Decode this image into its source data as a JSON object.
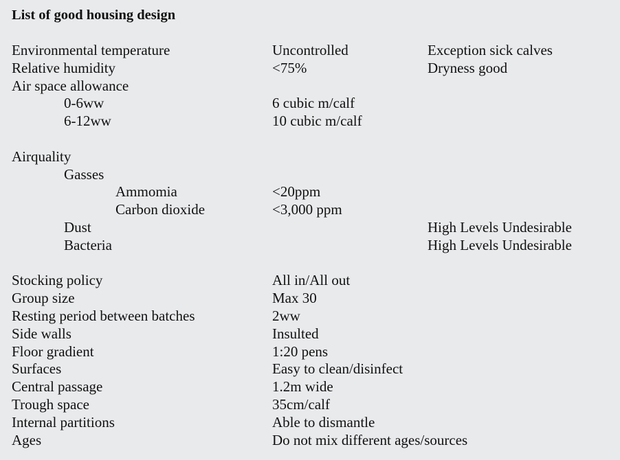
{
  "title": "List of good housing design",
  "rows": [
    {
      "label": "Environmental temperature",
      "indent": 0,
      "value": "Uncontrolled",
      "note": "Exception sick calves"
    },
    {
      "label": "Relative humidity",
      "indent": 0,
      "value": "<75%",
      "note": "Dryness good"
    },
    {
      "label": "Air space allowance",
      "indent": 0,
      "value": "",
      "note": ""
    },
    {
      "label": "0-6ww",
      "indent": 1,
      "value": "6 cubic m/calf",
      "note": ""
    },
    {
      "label": "6-12ww",
      "indent": 1,
      "value": "10 cubic m/calf",
      "note": ""
    },
    {
      "label": "",
      "indent": 0,
      "value": "",
      "note": ""
    },
    {
      "label": "Airquality",
      "indent": 0,
      "value": "",
      "note": ""
    },
    {
      "label": "Gasses",
      "indent": 1,
      "value": "",
      "note": ""
    },
    {
      "label": "Ammomia",
      "indent": 2,
      "value": "<20ppm",
      "note": ""
    },
    {
      "label": "Carbon dioxide",
      "indent": 2,
      "value": "<3,000 ppm",
      "note": ""
    },
    {
      "label": "Dust",
      "indent": 1,
      "value": "",
      "note": "High Levels Undesirable"
    },
    {
      "label": "Bacteria",
      "indent": 1,
      "value": "",
      "note": "High Levels Undesirable"
    },
    {
      "label": "",
      "indent": 0,
      "value": "",
      "note": ""
    },
    {
      "label": "Stocking policy",
      "indent": 0,
      "value": "All in/All out",
      "note": ""
    },
    {
      "label": "Group size",
      "indent": 0,
      "value": "Max 30",
      "note": ""
    },
    {
      "label": "Resting period between batches",
      "indent": 0,
      "value": "2ww",
      "note": ""
    },
    {
      "label": "Side walls",
      "indent": 0,
      "value": "Insulted",
      "note": ""
    },
    {
      "label": "Floor gradient",
      "indent": 0,
      "value": "1:20 pens",
      "note": ""
    },
    {
      "label": "Surfaces",
      "indent": 0,
      "value": "Easy to clean/disinfect",
      "note": ""
    },
    {
      "label": "Central passage",
      "indent": 0,
      "value": "1.2m wide",
      "note": ""
    },
    {
      "label": "Trough space",
      "indent": 0,
      "value": "35cm/calf",
      "note": ""
    },
    {
      "label": "Internal partitions",
      "indent": 0,
      "value": "Able to dismantle",
      "note": ""
    },
    {
      "label": "Ages",
      "indent": 0,
      "value": "Do not mix different ages/sources",
      "note": ""
    }
  ]
}
